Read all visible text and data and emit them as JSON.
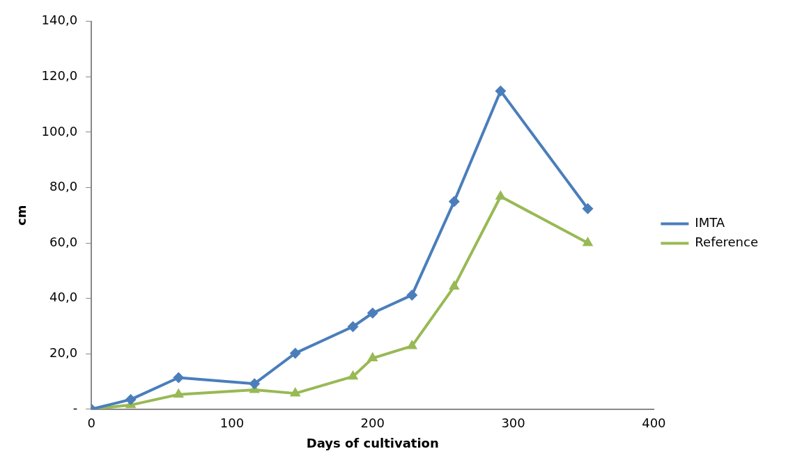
{
  "chart_data": {
    "type": "line",
    "xlabel": "Days of cultivation",
    "ylabel": "cm",
    "xlim": [
      0,
      400
    ],
    "xticks": [
      0,
      100,
      200,
      300,
      400
    ],
    "ylim": [
      0,
      140
    ],
    "yticks": [
      {
        "value": 0,
        "label": "-"
      },
      {
        "value": 20,
        "label": "20,0"
      },
      {
        "value": 40,
        "label": "40,0"
      },
      {
        "value": 60,
        "label": "60,0"
      },
      {
        "value": 80,
        "label": "80,0"
      },
      {
        "value": 100,
        "label": "100,0"
      },
      {
        "value": 120,
        "label": "120,0"
      },
      {
        "value": 140,
        "label": "140,0"
      }
    ],
    "x": [
      0,
      28,
      62,
      116,
      145,
      186,
      200,
      228,
      258,
      291,
      353
    ],
    "series": [
      {
        "name": "IMTA",
        "color": "#4a7ebb",
        "marker": "diamond",
        "values": [
          0,
          3.5,
          11.4,
          9.2,
          20.2,
          29.8,
          34.7,
          41.2,
          75,
          114.9,
          72.4
        ]
      },
      {
        "name": "Reference",
        "color": "#98b954",
        "marker": "triangle",
        "values": [
          0,
          1.5,
          5.3,
          7,
          5.7,
          11.8,
          18.4,
          22.8,
          44.3,
          76.8,
          60
        ]
      }
    ],
    "grid": false,
    "legend": "right",
    "line_style": "solid"
  }
}
